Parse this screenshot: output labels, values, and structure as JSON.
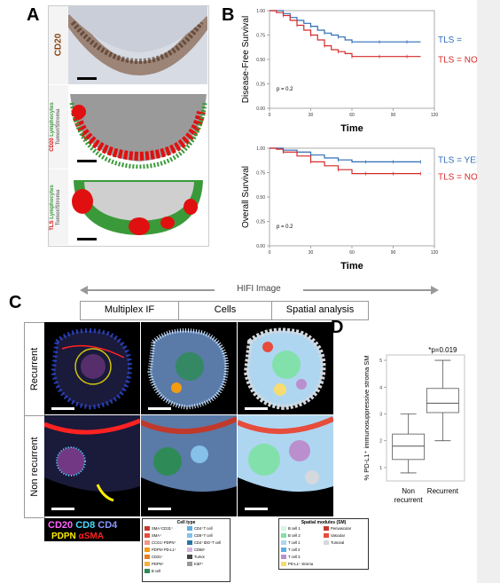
{
  "panels": {
    "a": "A",
    "b": "B",
    "c": "C",
    "d": "D"
  },
  "panel_a": {
    "label1": "CD20",
    "label2_red": "CD20",
    "label2_green": "Lymphocytes",
    "label2_gray": "Tumor/Stroma",
    "label3_red": "TLS",
    "label3_green": "Lymphocytes",
    "label3_gray": "Tumor/Stroma"
  },
  "colors": {
    "tls_yes": "#2e6db5",
    "tls_no": "#d42a2a",
    "green": "#3a9a3a",
    "red": "#e01010"
  },
  "chart_data": [
    {
      "type": "line",
      "subtype": "kaplan-meier",
      "title": "",
      "xlabel": "Time",
      "ylabel": "Disease-Free Survival",
      "xlim": [
        0,
        120
      ],
      "ylim": [
        0,
        1
      ],
      "x_ticks": [
        "0",
        "30",
        "60",
        "90",
        "120"
      ],
      "y_ticks": [
        "0.00",
        "0.25",
        "0.50",
        "0.75",
        "1.00"
      ],
      "annotation": "p = 0.2",
      "series": [
        {
          "name": "TLS =",
          "x": [
            0,
            5,
            10,
            15,
            20,
            25,
            30,
            35,
            40,
            45,
            50,
            55,
            60,
            70,
            80,
            90,
            100,
            110
          ],
          "y": [
            1.0,
            1.0,
            0.97,
            0.93,
            0.9,
            0.87,
            0.84,
            0.8,
            0.77,
            0.75,
            0.73,
            0.7,
            0.68,
            0.68,
            0.68,
            0.68,
            0.68,
            0.68
          ]
        },
        {
          "name": "TLS = NO",
          "x": [
            0,
            5,
            10,
            15,
            20,
            25,
            30,
            35,
            40,
            45,
            50,
            55,
            60,
            70,
            80,
            90,
            100,
            110
          ],
          "y": [
            1.0,
            0.98,
            0.95,
            0.9,
            0.85,
            0.8,
            0.75,
            0.7,
            0.64,
            0.6,
            0.58,
            0.56,
            0.53,
            0.53,
            0.53,
            0.53,
            0.53,
            0.53
          ]
        }
      ]
    },
    {
      "type": "line",
      "subtype": "kaplan-meier",
      "title": "",
      "xlabel": "Time",
      "ylabel": "Overall Survival",
      "xlim": [
        0,
        120
      ],
      "ylim": [
        0,
        1
      ],
      "x_ticks": [
        "0",
        "30",
        "60",
        "90",
        "120"
      ],
      "y_ticks": [
        "0.00",
        "0.25",
        "0.50",
        "0.75",
        "1.00"
      ],
      "annotation": "p = 0.2",
      "series": [
        {
          "name": "TLS = YES",
          "x": [
            0,
            5,
            10,
            20,
            30,
            40,
            50,
            60,
            70,
            80,
            90,
            100,
            110
          ],
          "y": [
            1.0,
            1.0,
            0.98,
            0.96,
            0.93,
            0.9,
            0.88,
            0.86,
            0.86,
            0.86,
            0.86,
            0.86,
            0.86
          ]
        },
        {
          "name": "TLS = NO",
          "x": [
            0,
            5,
            10,
            20,
            30,
            40,
            50,
            60,
            70,
            80,
            90,
            100,
            110
          ],
          "y": [
            1.0,
            0.99,
            0.96,
            0.92,
            0.86,
            0.82,
            0.78,
            0.74,
            0.74,
            0.74,
            0.74,
            0.74,
            0.74
          ]
        }
      ]
    },
    {
      "type": "box",
      "title": "",
      "xlabel": "",
      "ylabel": "% PD-L1⁺ immunosuppressive stroma SM",
      "ylim": [
        0.5,
        5.2
      ],
      "y_ticks": [
        "1",
        "2",
        "3",
        "4",
        "5"
      ],
      "categories": [
        "Non recurrent",
        "Recurrent"
      ],
      "boxes": [
        {
          "min": 0.8,
          "q1": 1.3,
          "median": 1.8,
          "q3": 2.25,
          "max": 3.0
        },
        {
          "min": 2.0,
          "q1": 3.05,
          "median": 3.4,
          "q3": 3.95,
          "max": 5.0
        }
      ],
      "annotation": "*p=0.019"
    }
  ],
  "panel_c": {
    "hifi": "HIFI Image",
    "headers": [
      "Multiplex IF",
      "Cells",
      "Spatial analysis"
    ],
    "rows": [
      "Recurrent",
      "Non recurrent"
    ],
    "if_legend": [
      {
        "text": "CD20",
        "color": "#ff66ff"
      },
      {
        "text": "CD8",
        "color": "#44ddff"
      },
      {
        "text": "CD4",
        "color": "#8899ff"
      },
      {
        "text": "PDPN",
        "color": "#ffee00"
      },
      {
        "text": "αSMA",
        "color": "#ff2222"
      }
    ],
    "cell_type_title": "Cell type",
    "cell_types_left": [
      {
        "label": "SMA⁺CD31⁺",
        "color": "#c0392b"
      },
      {
        "label": "SMA⁺",
        "color": "#e74c3c"
      },
      {
        "label": "CCG1⁺PDPN⁺",
        "color": "#f1948a"
      },
      {
        "label": "PDPN⁺PD-L1⁺",
        "color": "#f39c12"
      },
      {
        "label": "CD31⁺",
        "color": "#e67e22"
      },
      {
        "label": "PDPN⁺",
        "color": "#f5b041"
      },
      {
        "label": "B cell",
        "color": "#2e8b57"
      }
    ],
    "cell_types_right": [
      {
        "label": "CD4⁺T cell",
        "color": "#5dade2"
      },
      {
        "label": "CD8⁺T cell",
        "color": "#85c1e9"
      },
      {
        "label": "CD4⁺IDO⁺T cell",
        "color": "#2874a6"
      },
      {
        "label": "CD68⁺",
        "color": "#d2b4de"
      },
      {
        "label": "Tumor",
        "color": "#444444"
      },
      {
        "label": "Ki67⁺",
        "color": "#999999"
      }
    ],
    "sm_title": "Spatial modules (SM)",
    "sm_left": [
      {
        "label": "B cell 1",
        "color": "#d5f5e3"
      },
      {
        "label": "B cell 2",
        "color": "#82e0aa"
      },
      {
        "label": "T cell 1",
        "color": "#aed6f1"
      },
      {
        "label": "T cell 2",
        "color": "#5dade2"
      },
      {
        "label": "T cell 3",
        "color": "#bb8fce"
      },
      {
        "label": "PD-L1⁺ stroma",
        "color": "#f7dc6f"
      }
    ],
    "sm_right": [
      {
        "label": "Perivascular",
        "color": "#c0392b"
      },
      {
        "label": "Vascular",
        "color": "#e74c3c"
      },
      {
        "label": "Tumoral",
        "color": "#d5d8dc"
      }
    ]
  }
}
